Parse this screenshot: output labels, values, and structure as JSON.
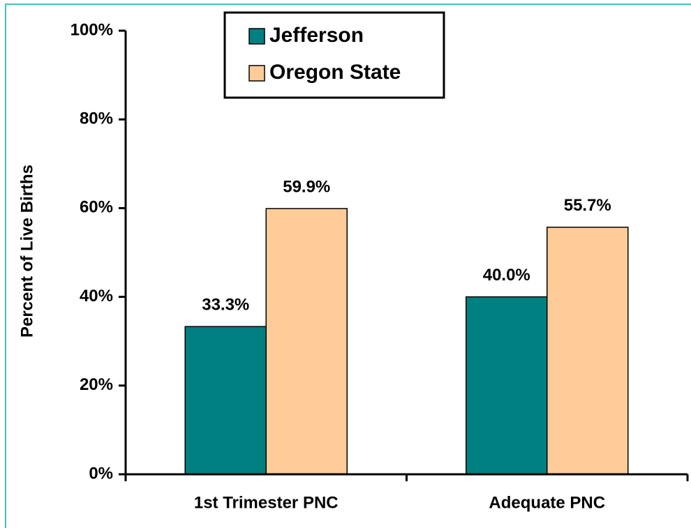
{
  "chart_data": {
    "type": "bar",
    "y_label": "Percent of Live Births",
    "categories": [
      "1st Trimester PNC",
      "Adequate PNC"
    ],
    "series": [
      {
        "name": "Jefferson",
        "color": "#008080",
        "values": [
          33.3,
          40.0
        ],
        "value_labels": [
          "33.3%",
          "40.0%"
        ]
      },
      {
        "name": "Oregon State",
        "color": "#ffcc99",
        "values": [
          59.9,
          55.7
        ],
        "value_labels": [
          "59.9%",
          "55.7%"
        ]
      }
    ],
    "ylim": [
      0,
      100
    ],
    "yticks": [
      {
        "value": 0,
        "label": "0%"
      },
      {
        "value": 20,
        "label": "20%"
      },
      {
        "value": 40,
        "label": "40%"
      },
      {
        "value": 60,
        "label": "60%"
      },
      {
        "value": 80,
        "label": "80%"
      },
      {
        "value": 100,
        "label": "100%"
      }
    ],
    "legend": "top"
  }
}
